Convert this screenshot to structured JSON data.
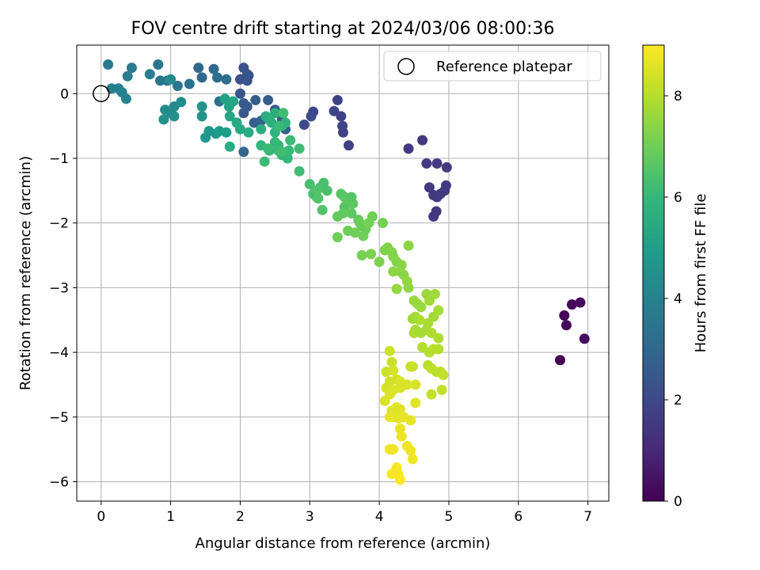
{
  "chart_data": {
    "type": "scatter",
    "title": "FOV centre drift starting at 2024/03/06 08:00:36",
    "xlabel": "Angular distance from reference (arcmin)",
    "ylabel": "Rotation from reference (arcmin)",
    "xlim": [
      -0.35,
      7.3
    ],
    "ylim": [
      -6.3,
      0.75
    ],
    "xticks": [
      0,
      1,
      2,
      3,
      4,
      5,
      6,
      7
    ],
    "yticks": [
      0,
      -1,
      -2,
      -3,
      -4,
      -5,
      -6
    ],
    "grid": true,
    "legend": {
      "placement": "top-right",
      "entries": [
        "Reference platepar"
      ]
    },
    "colorbar": {
      "label": "Hours from first FF file",
      "min": 0,
      "max": 9.0,
      "ticks": [
        0,
        2,
        4,
        6,
        8
      ],
      "colormap": "viridis"
    },
    "reference_point": {
      "x": 0,
      "y": 0
    },
    "colormap_stops": [
      "#440154",
      "#482878",
      "#3e4989",
      "#31688e",
      "#26828e",
      "#1f9e89",
      "#35b779",
      "#6ece58",
      "#b5de2b",
      "#fde725"
    ],
    "series": [
      {
        "points": [
          [
            6.6,
            -4.12,
            0.05
          ],
          [
            6.66,
            -3.43,
            0.1
          ],
          [
            6.69,
            -3.58,
            0.15
          ],
          [
            6.77,
            -3.26,
            0.2
          ],
          [
            6.89,
            -3.23,
            0.25
          ],
          [
            6.95,
            -3.79,
            0.3
          ],
          [
            4.42,
            -0.85,
            1.5
          ],
          [
            4.62,
            -0.72,
            1.5
          ],
          [
            4.68,
            -1.08,
            1.5
          ],
          [
            4.83,
            -1.08,
            1.55
          ],
          [
            4.97,
            -1.14,
            1.55
          ],
          [
            4.72,
            -1.45,
            1.5
          ],
          [
            4.78,
            -1.57,
            1.5
          ],
          [
            4.83,
            -1.6,
            1.55
          ],
          [
            4.88,
            -1.55,
            1.6
          ],
          [
            4.94,
            -1.5,
            1.5
          ],
          [
            4.96,
            -1.42,
            1.5
          ],
          [
            4.82,
            -1.82,
            1.5
          ],
          [
            4.78,
            -1.9,
            1.5
          ],
          [
            3.4,
            -0.1,
            1.8
          ],
          [
            3.45,
            -0.35,
            1.8
          ],
          [
            3.47,
            -0.5,
            1.8
          ],
          [
            3.48,
            -0.6,
            1.8
          ],
          [
            3.56,
            -0.8,
            1.8
          ],
          [
            3.35,
            -0.27,
            1.9
          ],
          [
            3.05,
            -0.28,
            1.9
          ],
          [
            3.02,
            -0.35,
            2.0
          ],
          [
            2.92,
            -0.48,
            2.0
          ],
          [
            2.0,
            0.22,
            2.3
          ],
          [
            2.05,
            0.4,
            2.3
          ],
          [
            2.1,
            0.3,
            2.4
          ],
          [
            2.12,
            0.28,
            2.4
          ],
          [
            2.1,
            0.2,
            2.4
          ],
          [
            2.0,
            0.0,
            2.4
          ],
          [
            2.05,
            -0.15,
            2.5
          ],
          [
            2.1,
            -0.2,
            2.5
          ],
          [
            2.05,
            -0.3,
            2.5
          ],
          [
            2.22,
            -0.1,
            2.6
          ],
          [
            2.4,
            -0.1,
            2.6
          ],
          [
            2.5,
            -0.25,
            2.6
          ],
          [
            2.65,
            -0.55,
            2.7
          ],
          [
            2.2,
            -0.45,
            2.7
          ],
          [
            2.6,
            -0.4,
            2.7
          ],
          [
            2.3,
            -0.42,
            2.8
          ],
          [
            2.05,
            -0.9,
            3.0
          ],
          [
            1.4,
            0.4,
            3.0
          ],
          [
            1.45,
            0.25,
            3.0
          ],
          [
            1.62,
            0.38,
            3.1
          ],
          [
            1.67,
            0.25,
            3.2
          ],
          [
            1.8,
            0.22,
            3.2
          ],
          [
            1.7,
            -0.12,
            3.3
          ],
          [
            1.27,
            0.15,
            3.4
          ],
          [
            1.1,
            0.12,
            3.5
          ],
          [
            0.85,
            0.2,
            3.5
          ],
          [
            0.82,
            0.45,
            3.5
          ],
          [
            0.95,
            0.2,
            3.6
          ],
          [
            0.1,
            0.45,
            3.7
          ],
          [
            0.44,
            0.4,
            3.7
          ],
          [
            0.7,
            0.3,
            3.8
          ],
          [
            0.38,
            0.27,
            3.8
          ],
          [
            0.15,
            0.08,
            3.9
          ],
          [
            0.25,
            0.08,
            3.9
          ],
          [
            0.3,
            0.02,
            4.0
          ],
          [
            0.36,
            -0.08,
            4.0
          ],
          [
            1.0,
            0.22,
            4.3
          ],
          [
            1.05,
            -0.2,
            4.3
          ],
          [
            1.15,
            -0.13,
            4.4
          ],
          [
            0.92,
            -0.25,
            4.4
          ],
          [
            1.0,
            -0.3,
            4.4
          ],
          [
            0.9,
            -0.4,
            4.5
          ],
          [
            1.05,
            -0.35,
            4.5
          ],
          [
            1.45,
            -0.2,
            4.6
          ],
          [
            1.45,
            -0.35,
            4.6
          ],
          [
            1.55,
            -0.58,
            4.7
          ],
          [
            1.65,
            -0.62,
            4.8
          ],
          [
            1.5,
            -0.68,
            4.8
          ],
          [
            1.7,
            -0.58,
            4.9
          ],
          [
            1.8,
            -0.6,
            5.0
          ],
          [
            1.78,
            -0.08,
            5.2
          ],
          [
            1.84,
            -0.2,
            5.2
          ],
          [
            1.9,
            -0.12,
            5.3
          ],
          [
            1.85,
            -0.35,
            5.3
          ],
          [
            1.95,
            -0.45,
            5.4
          ],
          [
            2.0,
            -0.55,
            5.4
          ],
          [
            2.12,
            -0.6,
            5.5
          ],
          [
            1.85,
            -0.82,
            5.5
          ],
          [
            2.3,
            -0.55,
            5.6
          ],
          [
            2.37,
            -0.35,
            5.6
          ],
          [
            2.42,
            -0.4,
            5.6
          ],
          [
            2.5,
            -0.3,
            5.7
          ],
          [
            2.45,
            -0.45,
            5.7
          ],
          [
            2.5,
            -0.6,
            5.8
          ],
          [
            2.6,
            -0.5,
            5.8
          ],
          [
            2.65,
            -0.45,
            5.8
          ],
          [
            2.3,
            -0.8,
            5.9
          ],
          [
            2.42,
            -0.88,
            5.9
          ],
          [
            2.5,
            -0.75,
            5.9
          ],
          [
            2.55,
            -0.8,
            6.0
          ],
          [
            2.6,
            -0.95,
            6.0
          ],
          [
            2.68,
            -1.0,
            6.0
          ],
          [
            2.7,
            -0.88,
            6.1
          ],
          [
            2.55,
            -0.88,
            6.1
          ],
          [
            2.35,
            -1.05,
            6.1
          ],
          [
            2.72,
            -0.72,
            6.1
          ],
          [
            2.85,
            -0.85,
            6.2
          ],
          [
            2.62,
            -0.3,
            6.2
          ],
          [
            2.55,
            -0.5,
            6.1
          ],
          [
            2.6,
            -0.9,
            6.2
          ],
          [
            2.4,
            -0.85,
            6.1
          ],
          [
            2.85,
            -1.2,
            6.2
          ],
          [
            3.0,
            -1.4,
            6.3
          ],
          [
            3.05,
            -1.55,
            6.3
          ],
          [
            3.1,
            -1.6,
            6.3
          ],
          [
            3.15,
            -1.45,
            6.4
          ],
          [
            3.2,
            -1.38,
            6.4
          ],
          [
            3.25,
            -1.5,
            6.4
          ],
          [
            3.18,
            -1.8,
            6.5
          ],
          [
            3.1,
            -1.5,
            6.5
          ],
          [
            3.12,
            -1.62,
            6.5
          ],
          [
            3.45,
            -1.55,
            6.6
          ],
          [
            3.5,
            -1.6,
            6.6
          ],
          [
            3.5,
            -1.75,
            6.6
          ],
          [
            3.55,
            -1.65,
            6.7
          ],
          [
            3.6,
            -1.85,
            6.7
          ],
          [
            3.62,
            -1.7,
            6.7
          ],
          [
            3.4,
            -1.9,
            6.8
          ],
          [
            3.48,
            -1.85,
            6.8
          ],
          [
            3.7,
            -1.95,
            6.8
          ],
          [
            3.72,
            -2.0,
            6.9
          ],
          [
            3.75,
            -2.05,
            6.9
          ],
          [
            3.8,
            -2.1,
            6.9
          ],
          [
            3.77,
            -2.2,
            7.0
          ],
          [
            3.65,
            -2.15,
            7.0
          ],
          [
            3.55,
            -2.12,
            7.0
          ],
          [
            3.4,
            -2.22,
            7.0
          ],
          [
            3.9,
            -1.9,
            7.0
          ],
          [
            4.05,
            -2.0,
            7.1
          ],
          [
            3.85,
            -2.0,
            7.1
          ],
          [
            3.6,
            -1.6,
            6.6
          ],
          [
            3.75,
            -2.5,
            7.1
          ],
          [
            3.88,
            -2.48,
            7.2
          ],
          [
            4.0,
            -2.6,
            7.2
          ],
          [
            4.08,
            -2.42,
            7.2
          ],
          [
            4.12,
            -2.38,
            7.3
          ],
          [
            4.18,
            -2.45,
            7.3
          ],
          [
            4.2,
            -2.52,
            7.3
          ],
          [
            4.25,
            -2.6,
            7.3
          ],
          [
            4.2,
            -2.75,
            7.4
          ],
          [
            4.32,
            -2.65,
            7.4
          ],
          [
            4.35,
            -2.8,
            7.4
          ],
          [
            4.4,
            -2.9,
            7.5
          ],
          [
            4.42,
            -3.0,
            7.5
          ],
          [
            4.25,
            -3.02,
            7.5
          ],
          [
            4.42,
            -2.35,
            7.4
          ],
          [
            4.3,
            -2.75,
            7.4
          ],
          [
            4.5,
            -3.2,
            7.6
          ],
          [
            4.55,
            -3.25,
            7.6
          ],
          [
            4.6,
            -3.3,
            7.6
          ],
          [
            4.68,
            -3.1,
            7.6
          ],
          [
            4.72,
            -3.2,
            7.7
          ],
          [
            4.8,
            -3.1,
            7.7
          ],
          [
            4.78,
            -3.45,
            7.7
          ],
          [
            4.85,
            -3.35,
            7.8
          ],
          [
            4.7,
            -3.55,
            7.8
          ],
          [
            4.68,
            -3.65,
            7.8
          ],
          [
            4.6,
            -3.7,
            7.8
          ],
          [
            4.52,
            -3.45,
            7.8
          ],
          [
            4.5,
            -3.7,
            7.9
          ],
          [
            4.58,
            -3.5,
            7.9
          ],
          [
            4.75,
            -3.7,
            7.9
          ],
          [
            4.85,
            -3.78,
            7.9
          ],
          [
            4.62,
            -3.92,
            8.0
          ],
          [
            4.72,
            -4.0,
            8.0
          ],
          [
            4.78,
            -3.95,
            8.0
          ],
          [
            4.85,
            -3.95,
            8.0
          ],
          [
            4.7,
            -4.2,
            8.1
          ],
          [
            4.75,
            -4.25,
            8.1
          ],
          [
            4.82,
            -4.3,
            8.1
          ],
          [
            4.88,
            -4.3,
            8.1
          ],
          [
            4.92,
            -4.35,
            8.2
          ],
          [
            4.75,
            -4.65,
            8.2
          ],
          [
            4.9,
            -4.58,
            8.2
          ],
          [
            4.48,
            -4.22,
            8.2
          ],
          [
            4.48,
            -3.48,
            7.7
          ],
          [
            4.52,
            -3.65,
            7.8
          ],
          [
            4.15,
            -3.98,
            8.3
          ],
          [
            4.18,
            -4.15,
            8.3
          ],
          [
            4.1,
            -4.3,
            8.3
          ],
          [
            4.2,
            -4.28,
            8.4
          ],
          [
            4.25,
            -4.42,
            8.4
          ],
          [
            4.15,
            -4.45,
            8.4
          ],
          [
            4.1,
            -4.55,
            8.4
          ],
          [
            4.3,
            -4.45,
            8.5
          ],
          [
            4.3,
            -4.55,
            8.5
          ],
          [
            4.2,
            -4.58,
            8.5
          ],
          [
            4.15,
            -4.65,
            8.5
          ],
          [
            4.4,
            -4.5,
            8.5
          ],
          [
            4.52,
            -4.5,
            8.5
          ],
          [
            4.08,
            -4.75,
            8.5
          ],
          [
            4.25,
            -4.85,
            8.6
          ],
          [
            4.18,
            -4.9,
            8.6
          ],
          [
            4.3,
            -4.88,
            8.6
          ],
          [
            4.2,
            -5.0,
            8.6
          ],
          [
            4.28,
            -5.02,
            8.6
          ],
          [
            4.35,
            -5.0,
            8.7
          ],
          [
            4.45,
            -5.05,
            8.7
          ],
          [
            4.15,
            -5.0,
            8.7
          ],
          [
            4.3,
            -5.18,
            8.7
          ],
          [
            4.32,
            -5.3,
            8.8
          ],
          [
            4.4,
            -5.45,
            8.8
          ],
          [
            4.45,
            -5.52,
            8.8
          ],
          [
            4.48,
            -5.65,
            8.8
          ],
          [
            4.2,
            -5.5,
            8.8
          ],
          [
            4.15,
            -5.5,
            8.8
          ],
          [
            4.25,
            -5.78,
            8.9
          ],
          [
            4.18,
            -5.88,
            8.9
          ],
          [
            4.27,
            -5.88,
            8.9
          ],
          [
            4.3,
            -5.97,
            9.0
          ],
          [
            4.52,
            -4.78,
            8.6
          ],
          [
            4.45,
            -4.22,
            8.3
          ]
        ]
      }
    ]
  }
}
